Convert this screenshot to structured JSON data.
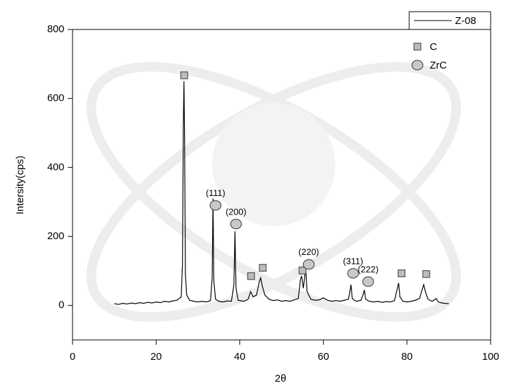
{
  "chart_data": {
    "type": "line",
    "xlabel": "2θ",
    "ylabel": "Intersity(cps)",
    "xlim": [
      0,
      100
    ],
    "ylim": [
      -100,
      800
    ],
    "xticks": [
      0,
      20,
      40,
      60,
      80,
      100
    ],
    "yticks": [
      0,
      200,
      400,
      600,
      800
    ],
    "legend": "upper right",
    "series": [
      {
        "name": "Z-08",
        "color": "#000000",
        "x": [
          10,
          11,
          12,
          13,
          14,
          15,
          16,
          17,
          18,
          19,
          20,
          21,
          22,
          23,
          24,
          25,
          26,
          26.3,
          26.5,
          26.65,
          26.8,
          27,
          27.3,
          28,
          29,
          30,
          31,
          32,
          33,
          33.4,
          33.6,
          33.8,
          34.2,
          35,
          36,
          37,
          38,
          38.6,
          38.85,
          39.1,
          39.6,
          40,
          41,
          42,
          42.6,
          43.2,
          44,
          44.7,
          45,
          45.4,
          46,
          47,
          48,
          49,
          50,
          51,
          52,
          53,
          54,
          54.5,
          54.8,
          55.2,
          55.6,
          55.8,
          56.1,
          57,
          58,
          59,
          60,
          61,
          62,
          63,
          64,
          65,
          66,
          66.4,
          66.6,
          66.9,
          67.5,
          68,
          69,
          69.6,
          69.8,
          70.1,
          71,
          72,
          73,
          74,
          75,
          76,
          77,
          77.7,
          78,
          78.3,
          79,
          80,
          81,
          82,
          83,
          83.6,
          84,
          84.4,
          85,
          86,
          87,
          87.5,
          88,
          89,
          90
        ],
        "values": [
          5,
          3,
          6,
          4,
          7,
          5,
          8,
          6,
          9,
          7,
          10,
          8,
          12,
          10,
          13,
          15,
          25,
          120,
          520,
          650,
          480,
          90,
          30,
          15,
          12,
          10,
          12,
          10,
          14,
          80,
          310,
          70,
          18,
          12,
          10,
          13,
          12,
          60,
          215,
          50,
          15,
          14,
          12,
          18,
          40,
          25,
          30,
          70,
          80,
          55,
          30,
          18,
          14,
          16,
          12,
          14,
          12,
          16,
          20,
          75,
          85,
          50,
          90,
          100,
          40,
          18,
          15,
          16,
          22,
          15,
          12,
          14,
          12,
          15,
          18,
          45,
          60,
          20,
          14,
          12,
          15,
          35,
          45,
          18,
          12,
          10,
          12,
          9,
          11,
          10,
          14,
          50,
          65,
          25,
          12,
          10,
          12,
          15,
          20,
          45,
          60,
          40,
          18,
          12,
          20,
          10,
          8,
          6,
          5
        ]
      }
    ],
    "markers": [
      {
        "name": "C",
        "shape": "square",
        "color": "#bdbdbd",
        "x": [
          26.7,
          42.7,
          45.5,
          55.0,
          78.7,
          84.6
        ],
        "y": [
          667,
          85,
          109,
          101,
          93,
          91
        ]
      },
      {
        "name": "ZrC",
        "shape": "circle",
        "color": "#c8c8c8",
        "x": [
          34.2,
          39.1,
          56.5,
          67.1,
          70.7
        ],
        "y": [
          290,
          236,
          119,
          93,
          69
        ],
        "labels": [
          "(111)",
          "(200)",
          "(220)",
          "(311)",
          "(222)"
        ]
      }
    ]
  }
}
